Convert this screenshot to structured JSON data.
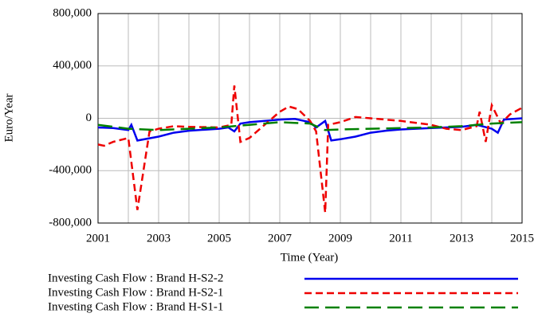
{
  "chart_data": {
    "type": "line",
    "x_label": "Time (Year)",
    "y_label": "Euro/Year",
    "xlim": [
      2001,
      2015
    ],
    "ylim": [
      -800000,
      800000
    ],
    "xticks": [
      2001,
      2003,
      2005,
      2007,
      2009,
      2011,
      2013,
      2015
    ],
    "xgrid": [
      2001,
      2002,
      2003,
      2004,
      2005,
      2006,
      2007,
      2008,
      2009,
      2010,
      2011,
      2012,
      2013,
      2014,
      2015
    ],
    "yticks": [
      {
        "value": -800000,
        "label": "-800,000"
      },
      {
        "value": -400000,
        "label": "-400,000"
      },
      0,
      {
        "value": 400000,
        "label": "400,000"
      },
      {
        "value": 800000,
        "label": "800,000"
      }
    ],
    "grid": true,
    "series": [
      {
        "name": "Investing Cash Flow : Brand H-S2-2",
        "color": "#0000ee",
        "dash": "solid",
        "x": [
          2001,
          2001.5,
          2002,
          2002.1,
          2002.3,
          2003,
          2003.5,
          2004,
          2005,
          2005.3,
          2005.5,
          2005.7,
          2006,
          2006.5,
          2007,
          2007.5,
          2008,
          2008.2,
          2008.5,
          2008.7,
          2009,
          2009.5,
          2010,
          2010.5,
          2011,
          2012,
          2013,
          2013.5,
          2014,
          2014.2,
          2014.4,
          2015
        ],
        "values": [
          -70000,
          -75000,
          -90000,
          -50000,
          -170000,
          -140000,
          -110000,
          -95000,
          -80000,
          -70000,
          -100000,
          -40000,
          -30000,
          -20000,
          -10000,
          -5000,
          -30000,
          -70000,
          -20000,
          -170000,
          -160000,
          -140000,
          -110000,
          -95000,
          -85000,
          -75000,
          -65000,
          -50000,
          -80000,
          -110000,
          -10000,
          0
        ]
      },
      {
        "name": "Investing Cash Flow : Brand H-S2-1",
        "color": "#ee0000",
        "dash": "dashed",
        "x": [
          2001,
          2001.2,
          2001.5,
          2002,
          2002.3,
          2002.7,
          2003,
          2003.5,
          2004,
          2005,
          2005.4,
          2005.5,
          2005.7,
          2006,
          2006.5,
          2007,
          2007.3,
          2007.6,
          2008,
          2008.2,
          2008.5,
          2008.6,
          2009,
          2009.5,
          2010,
          2011,
          2012,
          2012.5,
          2013,
          2013.5,
          2013.6,
          2013.8,
          2014,
          2014.3,
          2014.6,
          2015
        ],
        "values": [
          -200000,
          -210000,
          -180000,
          -150000,
          -700000,
          -100000,
          -80000,
          -60000,
          -65000,
          -70000,
          -50000,
          250000,
          -180000,
          -150000,
          -50000,
          50000,
          90000,
          70000,
          -20000,
          -100000,
          -720000,
          -50000,
          -30000,
          10000,
          0,
          -20000,
          -50000,
          -80000,
          -90000,
          -60000,
          50000,
          -180000,
          100000,
          -40000,
          30000,
          80000
        ]
      },
      {
        "name": "Investing Cash Flow : Brand H-S1-1",
        "color": "#008000",
        "dash": "longdash",
        "x": [
          2001,
          2002,
          2003,
          2004,
          2005,
          2006,
          2007,
          2008,
          2008.5,
          2009,
          2010,
          2011,
          2012,
          2013,
          2014,
          2015
        ],
        "values": [
          -50000,
          -80000,
          -90000,
          -80000,
          -70000,
          -50000,
          -30000,
          -40000,
          -90000,
          -85000,
          -80000,
          -75000,
          -70000,
          -60000,
          -40000,
          -30000
        ]
      }
    ]
  }
}
